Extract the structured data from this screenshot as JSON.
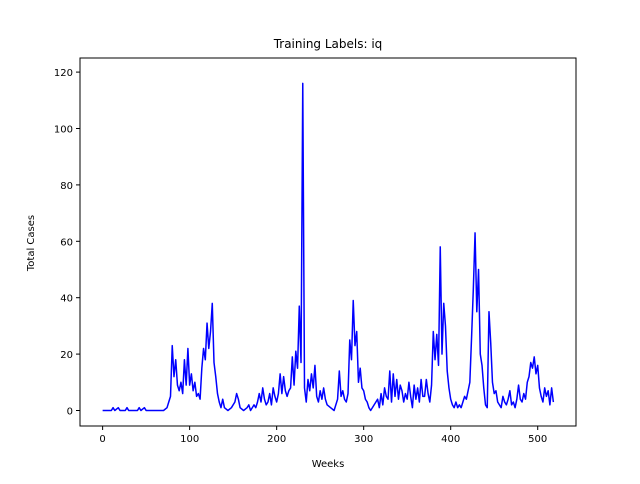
{
  "chart_data": {
    "type": "line",
    "title": "Training Labels: iq",
    "xlabel": "Weeks",
    "ylabel": "Total Cases",
    "xlim": [
      -26,
      544
    ],
    "ylim": [
      -5.5,
      125
    ],
    "xticks": [
      0,
      100,
      200,
      300,
      400,
      500
    ],
    "yticks": [
      0,
      20,
      40,
      60,
      80,
      100,
      120
    ],
    "grid": false,
    "series": [
      {
        "color": "#0000ff",
        "x": [
          0,
          10,
          12,
          14,
          18,
          20,
          26,
          28,
          30,
          40,
          42,
          44,
          48,
          50,
          70,
          74,
          76,
          78,
          80,
          82,
          84,
          86,
          88,
          90,
          92,
          94,
          96,
          98,
          100,
          102,
          104,
          106,
          108,
          110,
          112,
          114,
          116,
          118,
          120,
          122,
          124,
          126,
          128,
          130,
          132,
          134,
          136,
          138,
          140,
          144,
          148,
          152,
          154,
          156,
          158,
          162,
          166,
          168,
          170,
          174,
          176,
          178,
          180,
          182,
          184,
          186,
          188,
          190,
          192,
          194,
          196,
          198,
          200,
          202,
          204,
          206,
          208,
          210,
          212,
          214,
          216,
          218,
          220,
          222,
          224,
          226,
          228,
          230,
          232,
          234,
          236,
          238,
          240,
          242,
          244,
          246,
          248,
          250,
          252,
          254,
          256,
          258,
          262,
          266,
          270,
          272,
          274,
          276,
          278,
          280,
          282,
          284,
          286,
          288,
          290,
          292,
          294,
          296,
          298,
          300,
          302,
          304,
          306,
          308,
          312,
          316,
          318,
          320,
          322,
          324,
          326,
          328,
          330,
          332,
          334,
          336,
          338,
          340,
          342,
          344,
          346,
          348,
          350,
          352,
          354,
          356,
          358,
          360,
          362,
          364,
          366,
          368,
          370,
          372,
          374,
          376,
          378,
          380,
          382,
          384,
          386,
          388,
          390,
          392,
          394,
          396,
          398,
          400,
          402,
          404,
          406,
          408,
          410,
          412,
          414,
          416,
          418,
          420,
          422,
          424,
          426,
          428,
          430,
          432,
          434,
          436,
          438,
          440,
          442,
          444,
          446,
          448,
          450,
          452,
          454,
          456,
          458,
          460,
          462,
          464,
          466,
          468,
          470,
          472,
          474,
          476,
          478,
          480,
          482,
          484,
          486,
          488,
          490,
          492,
          494,
          496,
          498,
          500,
          502,
          504,
          506,
          508,
          510,
          512,
          514,
          516,
          518
        ],
        "values": [
          0,
          0,
          1,
          0,
          1,
          0,
          0,
          1,
          0,
          0,
          1,
          0,
          1,
          0,
          0,
          1,
          3,
          5,
          23,
          12,
          18,
          9,
          7,
          10,
          6,
          18,
          9,
          22,
          9,
          13,
          7,
          10,
          5,
          6,
          4,
          15,
          22,
          18,
          31,
          22,
          28,
          38,
          17,
          12,
          6,
          3,
          1,
          4,
          1,
          0,
          1,
          3,
          6,
          4,
          1,
          0,
          1,
          2,
          0,
          2,
          1,
          3,
          6,
          3,
          8,
          4,
          2,
          3,
          6,
          2,
          8,
          5,
          3,
          6,
          13,
          6,
          12,
          7,
          5,
          7,
          8,
          19,
          9,
          21,
          15,
          37,
          17,
          116,
          8,
          3,
          11,
          7,
          13,
          8,
          16,
          5,
          3,
          7,
          4,
          8,
          4,
          2,
          1,
          0,
          4,
          14,
          5,
          7,
          4,
          3,
          6,
          25,
          18,
          39,
          23,
          28,
          10,
          15,
          8,
          7,
          4,
          3,
          1,
          0,
          2,
          4,
          1,
          6,
          2,
          8,
          5,
          4,
          14,
          3,
          13,
          5,
          11,
          4,
          9,
          7,
          3,
          6,
          4,
          10,
          5,
          1,
          9,
          4,
          8,
          3,
          11,
          5,
          5,
          11,
          6,
          3,
          9,
          28,
          18,
          27,
          16,
          58,
          20,
          38,
          30,
          14,
          8,
          4,
          2,
          1,
          3,
          1,
          2,
          1,
          3,
          5,
          4,
          7,
          10,
          26,
          43,
          63,
          35,
          50,
          20,
          16,
          8,
          2,
          1,
          35,
          24,
          10,
          6,
          7,
          3,
          2,
          1,
          5,
          3,
          2,
          4,
          7,
          2,
          3,
          1,
          4,
          9,
          4,
          3,
          6,
          4,
          10,
          12,
          17,
          15,
          19,
          13,
          16,
          8,
          5,
          3,
          8,
          5,
          7,
          2,
          8,
          3
        ]
      }
    ]
  }
}
